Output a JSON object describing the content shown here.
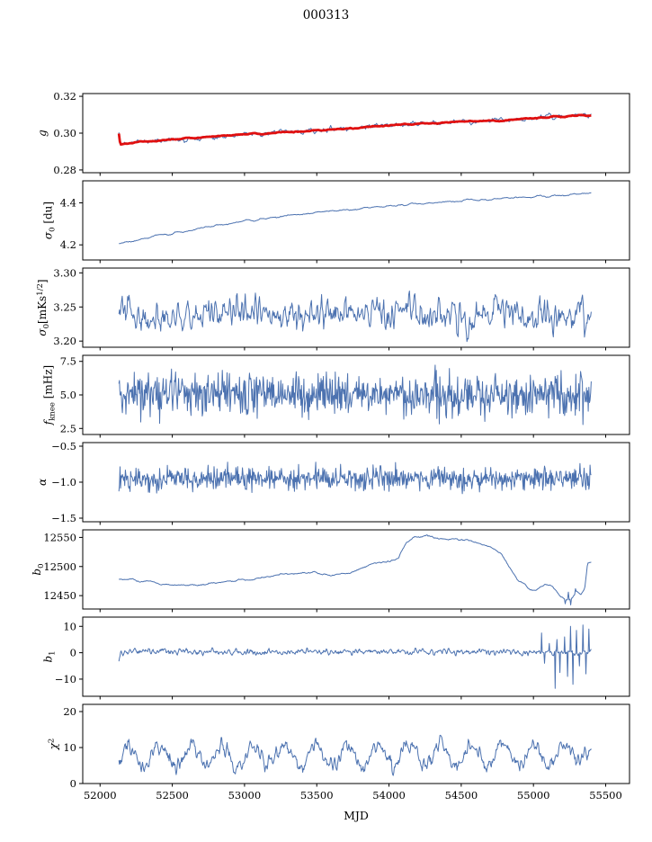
{
  "chart_data": {
    "type": "line",
    "title": "000313",
    "xlabel": "MJD",
    "x_axis": {
      "range": [
        51880,
        55665
      ],
      "ticks": [
        52000,
        52500,
        53000,
        53500,
        54000,
        54500,
        55000,
        55500
      ],
      "tick_labels": [
        "52000",
        "52500",
        "53000",
        "53500",
        "54000",
        "54500",
        "55000",
        "55500"
      ]
    },
    "colors": {
      "line": "#4c72b0",
      "overlay": "#e01010",
      "spine": "#000000",
      "text": "#000000",
      "background": "#ffffff"
    },
    "panels": [
      {
        "id": "g",
        "label_parts": [
          {
            "t": "g",
            "i": 1
          }
        ],
        "ylim": [
          0.2785,
          0.3215
        ],
        "yticks": [
          0.28,
          0.3,
          0.32
        ],
        "ytick_labels": [
          "0.28",
          "0.30",
          "0.32"
        ],
        "series": [
          {
            "name": "g-measured",
            "color": "#4c72b0",
            "width": 1.0,
            "n": 650,
            "seed": 11,
            "noise": 0.0009,
            "smooth": 2,
            "keypoints": [
              [
                52130,
                0.2998
              ],
              [
                52140,
                0.2936
              ],
              [
                52155,
                0.2942
              ],
              [
                52200,
                0.2949
              ],
              [
                52300,
                0.2956
              ],
              [
                52450,
                0.2963
              ],
              [
                52600,
                0.2972
              ],
              [
                52750,
                0.298
              ],
              [
                52900,
                0.2988
              ],
              [
                53050,
                0.2996
              ],
              [
                53200,
                0.3002
              ],
              [
                53350,
                0.3008
              ],
              [
                53500,
                0.3014
              ],
              [
                53650,
                0.3022
              ],
              [
                53800,
                0.303
              ],
              [
                53950,
                0.304
              ],
              [
                54100,
                0.3048
              ],
              [
                54250,
                0.3054
              ],
              [
                54400,
                0.3058
              ],
              [
                54550,
                0.3063
              ],
              [
                54700,
                0.3068
              ],
              [
                54850,
                0.3074
              ],
              [
                55000,
                0.3082
              ],
              [
                55100,
                0.3087
              ],
              [
                55200,
                0.3092
              ],
              [
                55300,
                0.3097
              ],
              [
                55400,
                0.3095
              ]
            ]
          },
          {
            "name": "g-overlay",
            "color": "#e01010",
            "width": 2.8,
            "n": 450,
            "seed": 12,
            "noise": 0.00025,
            "smooth": 3,
            "keypoints": [
              [
                52130,
                0.2998
              ],
              [
                52140,
                0.2936
              ],
              [
                52155,
                0.2942
              ],
              [
                52200,
                0.2949
              ],
              [
                52300,
                0.2956
              ],
              [
                52450,
                0.2963
              ],
              [
                52600,
                0.2972
              ],
              [
                52750,
                0.298
              ],
              [
                52900,
                0.2988
              ],
              [
                53050,
                0.2996
              ],
              [
                53200,
                0.3002
              ],
              [
                53350,
                0.3008
              ],
              [
                53500,
                0.3014
              ],
              [
                53650,
                0.3022
              ],
              [
                53800,
                0.303
              ],
              [
                53950,
                0.304
              ],
              [
                54100,
                0.3048
              ],
              [
                54250,
                0.3054
              ],
              [
                54400,
                0.3058
              ],
              [
                54550,
                0.3063
              ],
              [
                54700,
                0.3068
              ],
              [
                54850,
                0.3074
              ],
              [
                55000,
                0.3082
              ],
              [
                55100,
                0.3087
              ],
              [
                55200,
                0.3092
              ],
              [
                55300,
                0.3097
              ],
              [
                55400,
                0.3095
              ]
            ]
          }
        ]
      },
      {
        "id": "sigma0-du",
        "label_parts": [
          {
            "t": "σ",
            "i": 1
          },
          {
            "t": "0",
            "sub": 1
          },
          {
            "t": " [du]"
          }
        ],
        "ylim": [
          4.128,
          4.505
        ],
        "yticks": [
          4.2,
          4.4
        ],
        "ytick_labels": [
          "4.2",
          "4.4"
        ],
        "series": [
          {
            "name": "sigma0-du",
            "color": "#4c72b0",
            "width": 1.0,
            "n": 550,
            "seed": 21,
            "noise": 0.0035,
            "smooth": 3,
            "keypoints": [
              [
                52130,
                4.207
              ],
              [
                52250,
                4.222
              ],
              [
                52400,
                4.243
              ],
              [
                52600,
                4.268
              ],
              [
                52800,
                4.292
              ],
              [
                53000,
                4.313
              ],
              [
                53200,
                4.33
              ],
              [
                53400,
                4.345
              ],
              [
                53600,
                4.36
              ],
              [
                53800,
                4.372
              ],
              [
                54000,
                4.384
              ],
              [
                54200,
                4.396
              ],
              [
                54400,
                4.406
              ],
              [
                54600,
                4.414
              ],
              [
                54800,
                4.422
              ],
              [
                55000,
                4.43
              ],
              [
                55150,
                4.433
              ],
              [
                55300,
                4.44
              ],
              [
                55400,
                4.445
              ]
            ]
          }
        ]
      },
      {
        "id": "sigma0-mks",
        "label_parts": [
          {
            "t": "σ",
            "i": 1
          },
          {
            "t": "0",
            "sub": 1
          },
          {
            "t": "[mKs"
          },
          {
            "t": "1/2",
            "sup": 1
          },
          {
            "t": "]"
          }
        ],
        "ylim": [
          3.191,
          3.307
        ],
        "yticks": [
          3.2,
          3.25,
          3.3
        ],
        "ytick_labels": [
          "3.20",
          "3.25",
          "3.30"
        ],
        "series": [
          {
            "name": "sigma0-mks",
            "color": "#4c72b0",
            "width": 1.0,
            "n": 700,
            "seed": 31,
            "noise": 0.016,
            "smooth": 1,
            "keypoints": [
              [
                52130,
                3.238
              ],
              [
                55400,
                3.24
              ]
            ]
          }
        ]
      },
      {
        "id": "fknee",
        "label_parts": [
          {
            "t": "f",
            "i": 1
          },
          {
            "t": "knee",
            "sub": 1
          },
          {
            "t": " [mHz]"
          }
        ],
        "ylim": [
          2.05,
          7.95
        ],
        "yticks": [
          2.5,
          5.0,
          7.5
        ],
        "ytick_labels": [
          "2.5",
          "5.0",
          "7.5"
        ],
        "series": [
          {
            "name": "fknee",
            "color": "#4c72b0",
            "width": 1.0,
            "n": 800,
            "seed": 41,
            "noise": 0.8,
            "keypoints": [
              [
                52130,
                5.1
              ],
              [
                55400,
                5.0
              ]
            ]
          }
        ]
      },
      {
        "id": "alpha",
        "label_parts": [
          {
            "t": "α",
            "i": 1
          }
        ],
        "ylim": [
          -1.55,
          -0.45
        ],
        "yticks": [
          -1.5,
          -1.0,
          -0.5
        ],
        "ytick_labels": [
          "−1.5",
          "−1.0",
          "−0.5"
        ],
        "series": [
          {
            "name": "alpha",
            "color": "#4c72b0",
            "width": 1.0,
            "n": 800,
            "seed": 51,
            "noise": 0.08,
            "keypoints": [
              [
                52130,
                -0.95
              ],
              [
                55400,
                -0.95
              ]
            ]
          }
        ]
      },
      {
        "id": "b0",
        "label_parts": [
          {
            "t": "b",
            "i": 1
          },
          {
            "t": "0",
            "sub": 1
          }
        ],
        "ylim": [
          12427,
          12563
        ],
        "yticks": [
          12450,
          12500,
          12550
        ],
        "ytick_labels": [
          "12450",
          "12500",
          "12550"
        ],
        "series": [
          {
            "name": "b0",
            "color": "#4c72b0",
            "width": 1.0,
            "n": 600,
            "seed": 61,
            "noise": 1.5,
            "smooth": 4,
            "keypoints": [
              [
                52130,
                12476
              ],
              [
                52230,
                12478
              ],
              [
                52330,
                12473
              ],
              [
                52450,
                12469
              ],
              [
                52600,
                12467
              ],
              [
                52750,
                12470
              ],
              [
                52900,
                12474
              ],
              [
                53050,
                12479
              ],
              [
                53200,
                12484
              ],
              [
                53300,
                12487
              ],
              [
                53400,
                12490
              ],
              [
                53500,
                12488
              ],
              [
                53600,
                12484
              ],
              [
                53700,
                12486
              ],
              [
                53800,
                12497
              ],
              [
                53900,
                12506
              ],
              [
                54000,
                12509
              ],
              [
                54060,
                12513
              ],
              [
                54120,
                12540
              ],
              [
                54180,
                12551
              ],
              [
                54260,
                12553
              ],
              [
                54340,
                12549
              ],
              [
                54440,
                12547
              ],
              [
                54540,
                12544
              ],
              [
                54640,
                12540
              ],
              [
                54720,
                12533
              ],
              [
                54780,
                12520
              ],
              [
                54840,
                12495
              ],
              [
                54900,
                12475
              ],
              [
                54960,
                12463
              ],
              [
                55020,
                12460
              ],
              [
                55080,
                12468
              ],
              [
                55130,
                12466
              ],
              [
                55180,
                12452
              ],
              [
                55230,
                12444
              ],
              [
                55270,
                12447
              ],
              [
                55300,
                12458
              ],
              [
                55330,
                12452
              ],
              [
                55355,
                12460
              ],
              [
                55375,
                12503
              ],
              [
                55400,
                12506
              ]
            ],
            "spikes": [
              [
                55218,
                12436
              ],
              [
                55242,
                12456
              ],
              [
                55256,
                12434
              ],
              [
                55292,
                12462
              ]
            ]
          }
        ]
      },
      {
        "id": "b1",
        "label_parts": [
          {
            "t": "b",
            "i": 1
          },
          {
            "t": "1",
            "sub": 1
          }
        ],
        "ylim": [
          -16.5,
          13.5
        ],
        "yticks": [
          -10,
          0,
          10
        ],
        "ytick_labels": [
          "−10",
          "0",
          "10"
        ],
        "series": [
          {
            "name": "b1",
            "color": "#4c72b0",
            "width": 1.0,
            "n": 800,
            "seed": 71,
            "noise": 0.7,
            "smooth": 1,
            "keypoints": [
              [
                52130,
                -3.0
              ],
              [
                52145,
                0.0
              ],
              [
                52170,
                0.4
              ],
              [
                54800,
                0.4
              ],
              [
                55000,
                -0.1
              ],
              [
                55400,
                0.3
              ]
            ],
            "spikes": [
              [
                55055,
                7.5
              ],
              [
                55075,
                -4
              ],
              [
                55110,
                3.5
              ],
              [
                55150,
                -13.5
              ],
              [
                55163,
                5
              ],
              [
                55185,
                -7.5
              ],
              [
                55215,
                6
              ],
              [
                55235,
                -9
              ],
              [
                55258,
                10
              ],
              [
                55275,
                -12
              ],
              [
                55298,
                8.5
              ],
              [
                55318,
                -5
              ],
              [
                55342,
                10.5
              ],
              [
                55363,
                -8
              ],
              [
                55385,
                9
              ]
            ]
          }
        ]
      },
      {
        "id": "chi2",
        "label_parts": [
          {
            "t": "χ",
            "i": 1
          },
          {
            "t": "2",
            "sup": 1
          }
        ],
        "ylim": [
          0,
          22
        ],
        "yticks": [
          0,
          10,
          20
        ],
        "ytick_labels": [
          "0",
          "10",
          "20"
        ],
        "series": [
          {
            "name": "chi2",
            "color": "#4c72b0",
            "width": 1.0,
            "n": 800,
            "seed": 81,
            "noise": 1.3,
            "smooth": 1,
            "keypoints": [
              [
                52130,
                7.6
              ],
              [
                55280,
                7.8
              ],
              [
                55350,
                10.2
              ],
              [
                55400,
                8.6
              ]
            ],
            "period": {
              "amp": 2.9,
              "period": 216,
              "x0": 52146
            }
          }
        ]
      }
    ]
  }
}
